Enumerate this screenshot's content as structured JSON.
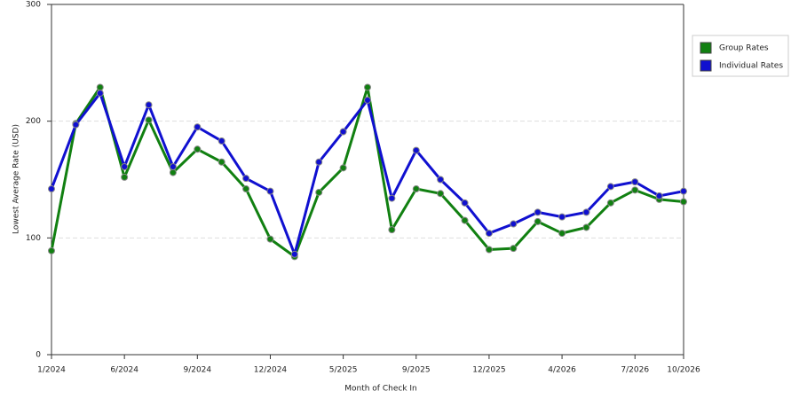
{
  "chart_data": {
    "type": "line",
    "x_label": "Month of Check In",
    "y_label": "Lowest Average Rate (USD)",
    "categories": [
      "1/2024",
      null,
      null,
      "6/2024",
      null,
      null,
      "9/2024",
      null,
      null,
      "12/2024",
      null,
      null,
      "5/2025",
      null,
      null,
      "9/2025",
      null,
      null,
      "12/2025",
      null,
      null,
      "4/2026",
      null,
      null,
      "7/2026",
      null,
      "10/2026"
    ],
    "series": [
      {
        "name": "Group Rates",
        "color": "#118011",
        "values": [
          89,
          198,
          229,
          152,
          201,
          156,
          176,
          165,
          142,
          99,
          84,
          139,
          160,
          229,
          107,
          142,
          138,
          115,
          90,
          91,
          114,
          104,
          109,
          130,
          141,
          133,
          131
        ]
      },
      {
        "name": "Individual Rates",
        "color": "#1010d0",
        "values": [
          142,
          197,
          224,
          161,
          214,
          161,
          195,
          183,
          151,
          140,
          86,
          165,
          191,
          218,
          134,
          175,
          150,
          130,
          104,
          112,
          122,
          118,
          122,
          144,
          148,
          136,
          140
        ]
      }
    ],
    "ylim": [
      0,
      300
    ],
    "yticks": [
      0,
      100,
      200,
      300
    ],
    "grid": true,
    "legend": "right"
  }
}
